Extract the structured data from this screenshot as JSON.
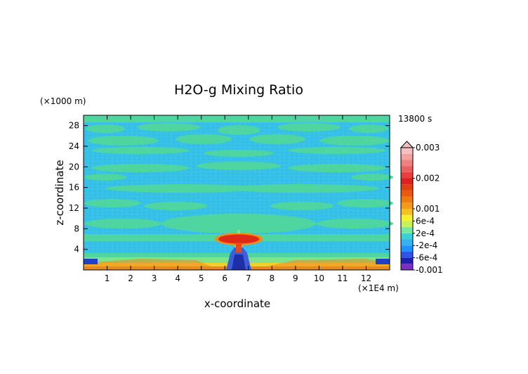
{
  "chart_data": {
    "type": "heatmap",
    "title": "H2O-g Mixing Ratio",
    "xlabel": "x-coordinate",
    "ylabel": "z-coordinate",
    "x_unit": "(×1E4 m)",
    "y_unit": "(×1000 m)",
    "time_label": "13800 s",
    "xlim": [
      0,
      13
    ],
    "ylim": [
      0,
      30
    ],
    "x_ticks": [
      1,
      2,
      3,
      4,
      5,
      6,
      7,
      8,
      9,
      10,
      11,
      12
    ],
    "x_tick_labels": [
      "1",
      "2",
      "3",
      "4",
      "5",
      "6",
      "7",
      "8",
      "9",
      "10",
      "11",
      "12"
    ],
    "y_ticks": [
      4,
      8,
      12,
      16,
      20,
      24,
      28
    ],
    "y_tick_labels": [
      "4",
      "8",
      "12",
      "16",
      "20",
      "24",
      "28"
    ],
    "colorbar": {
      "levels": [
        -0.001,
        -0.0008,
        -0.0006,
        -0.0004,
        -0.0002,
        0,
        0.0002,
        0.0004,
        0.0006,
        0.0008,
        0.001,
        0.0012,
        0.0014,
        0.0016,
        0.0018,
        0.002,
        0.0022,
        0.0024,
        0.0026,
        0.0028,
        0.003
      ],
      "colors": [
        "#7a2fc0",
        "#2020b0",
        "#2f55e6",
        "#1e90ff",
        "#35b0f0",
        "#3ed0d6",
        "#74e8a0",
        "#c8f05a",
        "#f5f030",
        "#f5c020",
        "#f59a18",
        "#f07a10",
        "#e85a10",
        "#e04010",
        "#dd2020",
        "#e84040",
        "#e86060",
        "#ee8080",
        "#f2a0a0",
        "#f7c0c0"
      ],
      "labels": [
        {
          "value": 0.003,
          "text": "0.003"
        },
        {
          "value": 0.002,
          "text": "0.002"
        },
        {
          "value": 0.001,
          "text": "0.001"
        },
        {
          "value": 0.0006,
          "text": "6e-4"
        },
        {
          "value": 0.0002,
          "text": "2e-4"
        },
        {
          "value": -0.0002,
          "text": "-2e-4"
        },
        {
          "value": -0.0006,
          "text": "-6e-4"
        },
        {
          "value": -0.001,
          "text": "-0.001"
        }
      ]
    }
  }
}
